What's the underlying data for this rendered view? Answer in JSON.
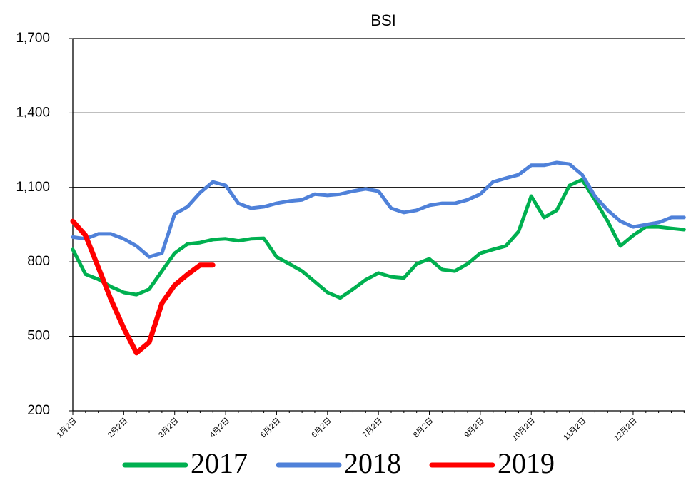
{
  "chart_data": {
    "type": "line",
    "title": "BSI",
    "categories": [
      "1月2日",
      null,
      null,
      null,
      "2月2日",
      null,
      null,
      null,
      "3月2日",
      null,
      null,
      null,
      "4月2日",
      null,
      null,
      null,
      "5月2日",
      null,
      null,
      null,
      "6月2日",
      null,
      null,
      null,
      "7月2日",
      null,
      null,
      null,
      "8月2日",
      null,
      null,
      null,
      "9月2日",
      null,
      null,
      null,
      "10月2日",
      null,
      null,
      null,
      "11月2日",
      null,
      null,
      null,
      "12月2日",
      null,
      null,
      null,
      null
    ],
    "series": [
      {
        "name": "2017",
        "color": "#00b050",
        "values": [
          850,
          750,
          730,
          700,
          677,
          668,
          690,
          763,
          835,
          872,
          878,
          890,
          893,
          885,
          893,
          895,
          820,
          792,
          763,
          720,
          677,
          655,
          690,
          728,
          755,
          740,
          735,
          792,
          812,
          769,
          763,
          792,
          835,
          850,
          864,
          922,
          1065,
          979,
          1008,
          1108,
          1131,
          1050,
          964,
          864,
          907,
          941,
          941,
          935,
          930
        ]
      },
      {
        "name": "2018",
        "color": "#4f81d9",
        "values": [
          900,
          893,
          913,
          913,
          893,
          864,
          820,
          835,
          993,
          1022,
          1079,
          1122,
          1108,
          1036,
          1016,
          1022,
          1036,
          1045,
          1050,
          1073,
          1068,
          1073,
          1085,
          1094,
          1085,
          1016,
          999,
          1008,
          1028,
          1036,
          1036,
          1050,
          1073,
          1122,
          1137,
          1151,
          1189,
          1189,
          1200,
          1194,
          1151,
          1065,
          1008,
          964,
          941,
          950,
          959,
          979,
          979
        ]
      },
      {
        "name": "2019",
        "color": "#ff0000",
        "values": [
          964,
          907,
          778,
          648,
          533,
          433,
          476,
          634,
          706,
          749,
          787,
          787,
          null,
          null,
          null,
          null,
          null,
          null,
          null,
          null,
          null,
          null,
          null,
          null,
          null,
          null,
          null,
          null,
          null,
          null,
          null,
          null,
          null,
          null,
          null,
          null,
          null,
          null,
          null,
          null,
          null,
          null,
          null,
          null,
          null,
          null,
          null,
          null,
          null
        ]
      }
    ],
    "ylim": [
      200,
      1700
    ],
    "yticks": [
      200,
      500,
      800,
      {
        "value": 1100,
        "label": "1,100"
      },
      {
        "value": 1400,
        "label": "1,400"
      },
      {
        "value": 1700,
        "label": "1,700"
      }
    ],
    "grid": true
  }
}
